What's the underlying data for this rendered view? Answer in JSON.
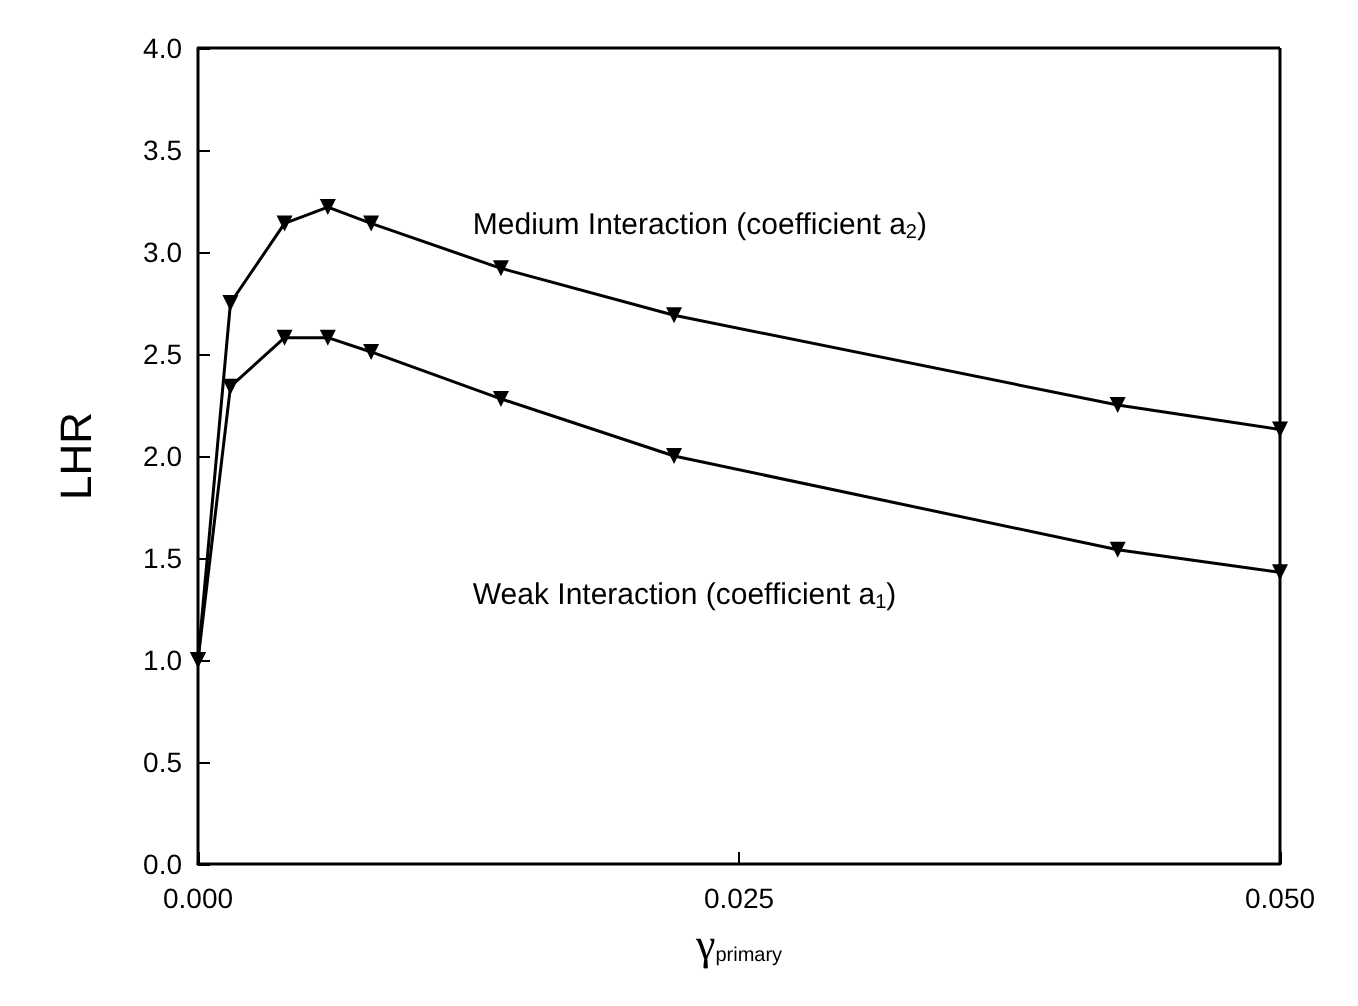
{
  "chart_data": {
    "type": "line",
    "xlabel": "γ$_{primary}$",
    "ylabel": "LHR",
    "series": [
      {
        "name": "Medium Interaction (coefficient a$_{2}$)",
        "color": "#000000",
        "x": [
          0,
          0.0015,
          0.004,
          0.006,
          0.008,
          0.014,
          0.022,
          0.0425,
          0.05
        ],
        "values": [
          1.0,
          2.75,
          3.14,
          3.22,
          3.14,
          2.92,
          2.69,
          2.25,
          2.13
        ]
      },
      {
        "name": "Weak Interaction (coefficient a$_{1}$)",
        "color": "#000000",
        "x": [
          0,
          0.0015,
          0.004,
          0.006,
          0.008,
          0.014,
          0.022,
          0.0425,
          0.05
        ],
        "values": [
          1.0,
          2.34,
          2.58,
          2.58,
          2.51,
          2.28,
          2.0,
          1.54,
          1.43
        ]
      }
    ],
    "xlim": [
      0,
      0.05
    ],
    "xticks": [
      {
        "value": 0,
        "label": "0.000"
      },
      {
        "value": 0.025,
        "label": "0.025"
      },
      {
        "value": 0.05,
        "label": "0.050"
      }
    ],
    "ylim": [
      0,
      4
    ],
    "yticks": [
      {
        "value": 0,
        "label": "0.0"
      },
      {
        "value": 0.5,
        "label": "0.5"
      },
      {
        "value": 1,
        "label": "1.0"
      },
      {
        "value": 1.5,
        "label": "1.5"
      },
      {
        "value": 2,
        "label": "2.0"
      },
      {
        "value": 2.5,
        "label": "2.5"
      },
      {
        "value": 3,
        "label": "3.0"
      },
      {
        "value": 3.5,
        "label": "3.5"
      },
      {
        "value": 4,
        "label": "4.0"
      }
    ],
    "grid": false,
    "legend": false,
    "marker": "triangle",
    "line_style": "solid"
  }
}
